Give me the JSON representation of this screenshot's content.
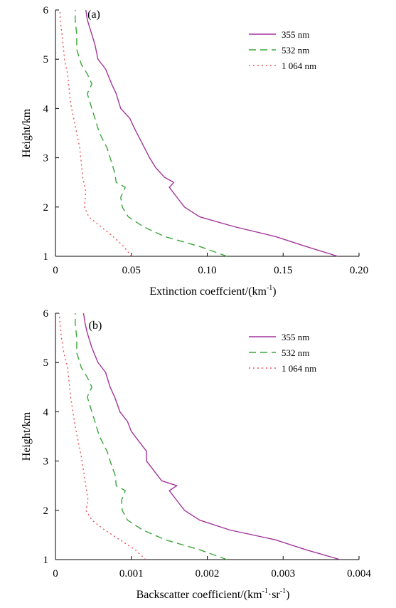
{
  "chart_data": [
    {
      "type": "line",
      "panel_label": "(a)",
      "xlabel": "Extinction coeffcient/(km",
      "xlabel_sup": "-1",
      "xlabel_end": ")",
      "ylabel": "Height/km",
      "xlim": [
        0,
        0.2
      ],
      "ylim": [
        1,
        6
      ],
      "xticks": [
        "0",
        "0.05",
        "0.10",
        "0.15",
        "0.20"
      ],
      "xtick_values": [
        0,
        0.05,
        0.1,
        0.15,
        0.2
      ],
      "yticks": [
        "1",
        "2",
        "3",
        "4",
        "5",
        "6"
      ],
      "ytick_values": [
        1,
        2,
        3,
        4,
        5,
        6
      ],
      "legend_position": "top-right",
      "series": [
        {
          "name": "355 nm",
          "color": "#a3349c",
          "dash": "solid",
          "points": [
            [
              0.186,
              1.0
            ],
            [
              0.165,
              1.2
            ],
            [
              0.145,
              1.4
            ],
            [
              0.118,
              1.6
            ],
            [
              0.095,
              1.8
            ],
            [
              0.085,
              2.0
            ],
            [
              0.08,
              2.2
            ],
            [
              0.075,
              2.4
            ],
            [
              0.078,
              2.5
            ],
            [
              0.072,
              2.6
            ],
            [
              0.066,
              2.8
            ],
            [
              0.062,
              3.0
            ],
            [
              0.057,
              3.3
            ],
            [
              0.052,
              3.6
            ],
            [
              0.049,
              3.8
            ],
            [
              0.043,
              4.0
            ],
            [
              0.04,
              4.3
            ],
            [
              0.037,
              4.5
            ],
            [
              0.033,
              4.8
            ],
            [
              0.028,
              5.0
            ],
            [
              0.026,
              5.3
            ],
            [
              0.023,
              5.6
            ],
            [
              0.021,
              5.8
            ],
            [
              0.02,
              6.0
            ]
          ]
        },
        {
          "name": "532 nm",
          "color": "#3aa63a",
          "dash": "dashed",
          "points": [
            [
              0.113,
              1.0
            ],
            [
              0.095,
              1.2
            ],
            [
              0.072,
              1.4
            ],
            [
              0.058,
              1.6
            ],
            [
              0.048,
              1.8
            ],
            [
              0.044,
              2.0
            ],
            [
              0.043,
              2.2
            ],
            [
              0.046,
              2.4
            ],
            [
              0.04,
              2.5
            ],
            [
              0.039,
              2.7
            ],
            [
              0.036,
              3.0
            ],
            [
              0.034,
              3.2
            ],
            [
              0.029,
              3.5
            ],
            [
              0.026,
              3.8
            ],
            [
              0.024,
              4.0
            ],
            [
              0.021,
              4.3
            ],
            [
              0.024,
              4.5
            ],
            [
              0.021,
              4.7
            ],
            [
              0.017,
              4.9
            ],
            [
              0.014,
              5.2
            ],
            [
              0.014,
              5.5
            ],
            [
              0.013,
              5.8
            ],
            [
              0.013,
              6.0
            ]
          ]
        },
        {
          "name": "1 064 nm",
          "color": "#e8555a",
          "dash": "dotted",
          "points": [
            [
              0.05,
              1.0
            ],
            [
              0.045,
              1.2
            ],
            [
              0.038,
              1.4
            ],
            [
              0.03,
              1.6
            ],
            [
              0.022,
              1.8
            ],
            [
              0.019,
              2.0
            ],
            [
              0.02,
              2.3
            ],
            [
              0.018,
              2.6
            ],
            [
              0.017,
              2.9
            ],
            [
              0.016,
              3.2
            ],
            [
              0.014,
              3.5
            ],
            [
              0.012,
              3.8
            ],
            [
              0.01,
              4.1
            ],
            [
              0.009,
              4.4
            ],
            [
              0.008,
              4.7
            ],
            [
              0.006,
              5.0
            ],
            [
              0.005,
              5.3
            ],
            [
              0.004,
              5.6
            ],
            [
              0.003,
              5.8
            ],
            [
              0.003,
              6.0
            ]
          ]
        }
      ]
    },
    {
      "type": "line",
      "panel_label": "(b)",
      "xlabel": "Backscatter coefficient/(km",
      "xlabel_sup": "-1",
      "xlabel_mid": "·sr",
      "xlabel_sup2": "-1",
      "xlabel_end": ")",
      "ylabel": "Height/km",
      "xlim": [
        0,
        0.004
      ],
      "ylim": [
        1,
        6
      ],
      "xticks": [
        "0",
        "0.001",
        "0.002",
        "0.003",
        "0.004"
      ],
      "xtick_values": [
        0,
        0.001,
        0.002,
        0.003,
        0.004
      ],
      "yticks": [
        "1",
        "2",
        "3",
        "4",
        "5",
        "6"
      ],
      "ytick_values": [
        1,
        2,
        3,
        4,
        5,
        6
      ],
      "legend_position": "top-right",
      "series": [
        {
          "name": "355 nm",
          "color": "#a3349c",
          "dash": "solid",
          "points": [
            [
              0.00375,
              1.0
            ],
            [
              0.0033,
              1.2
            ],
            [
              0.0029,
              1.4
            ],
            [
              0.0023,
              1.6
            ],
            [
              0.0019,
              1.8
            ],
            [
              0.0017,
              2.0
            ],
            [
              0.0016,
              2.2
            ],
            [
              0.0015,
              2.4
            ],
            [
              0.0016,
              2.5
            ],
            [
              0.0014,
              2.6
            ],
            [
              0.0013,
              2.8
            ],
            [
              0.0012,
              3.0
            ],
            [
              0.0012,
              3.2
            ],
            [
              0.0011,
              3.4
            ],
            [
              0.001,
              3.6
            ],
            [
              0.00095,
              3.8
            ],
            [
              0.00085,
              4.0
            ],
            [
              0.00078,
              4.3
            ],
            [
              0.00072,
              4.5
            ],
            [
              0.00066,
              4.8
            ],
            [
              0.00056,
              5.0
            ],
            [
              0.00048,
              5.3
            ],
            [
              0.00042,
              5.6
            ],
            [
              0.00039,
              5.8
            ],
            [
              0.00037,
              6.0
            ]
          ]
        },
        {
          "name": "532 nm",
          "color": "#3aa63a",
          "dash": "dashed",
          "points": [
            [
              0.00226,
              1.0
            ],
            [
              0.0019,
              1.2
            ],
            [
              0.00145,
              1.4
            ],
            [
              0.00115,
              1.6
            ],
            [
              0.00095,
              1.8
            ],
            [
              0.00088,
              2.0
            ],
            [
              0.00087,
              2.2
            ],
            [
              0.00092,
              2.4
            ],
            [
              0.0008,
              2.5
            ],
            [
              0.00079,
              2.7
            ],
            [
              0.00072,
              3.0
            ],
            [
              0.00068,
              3.2
            ],
            [
              0.00058,
              3.5
            ],
            [
              0.00052,
              3.8
            ],
            [
              0.00048,
              4.0
            ],
            [
              0.00042,
              4.3
            ],
            [
              0.00048,
              4.5
            ],
            [
              0.00042,
              4.7
            ],
            [
              0.00034,
              4.9
            ],
            [
              0.00028,
              5.2
            ],
            [
              0.00028,
              5.5
            ],
            [
              0.00026,
              5.8
            ],
            [
              0.00026,
              6.0
            ]
          ]
        },
        {
          "name": "1 064 nm",
          "color": "#e8555a",
          "dash": "dotted",
          "points": [
            [
              0.00119,
              1.0
            ],
            [
              0.00105,
              1.2
            ],
            [
              0.00085,
              1.4
            ],
            [
              0.00065,
              1.6
            ],
            [
              0.00048,
              1.8
            ],
            [
              0.0004,
              2.0
            ],
            [
              0.00043,
              2.2
            ],
            [
              0.0004,
              2.5
            ],
            [
              0.00037,
              2.8
            ],
            [
              0.00034,
              3.1
            ],
            [
              0.0003,
              3.4
            ],
            [
              0.00026,
              3.7
            ],
            [
              0.00023,
              4.0
            ],
            [
              0.0002,
              4.3
            ],
            [
              0.00018,
              4.6
            ],
            [
              0.00016,
              4.9
            ],
            [
              0.00011,
              5.2
            ],
            [
              8e-05,
              5.5
            ],
            [
              6e-05,
              5.8
            ],
            [
              5e-05,
              6.0
            ]
          ]
        }
      ]
    }
  ]
}
